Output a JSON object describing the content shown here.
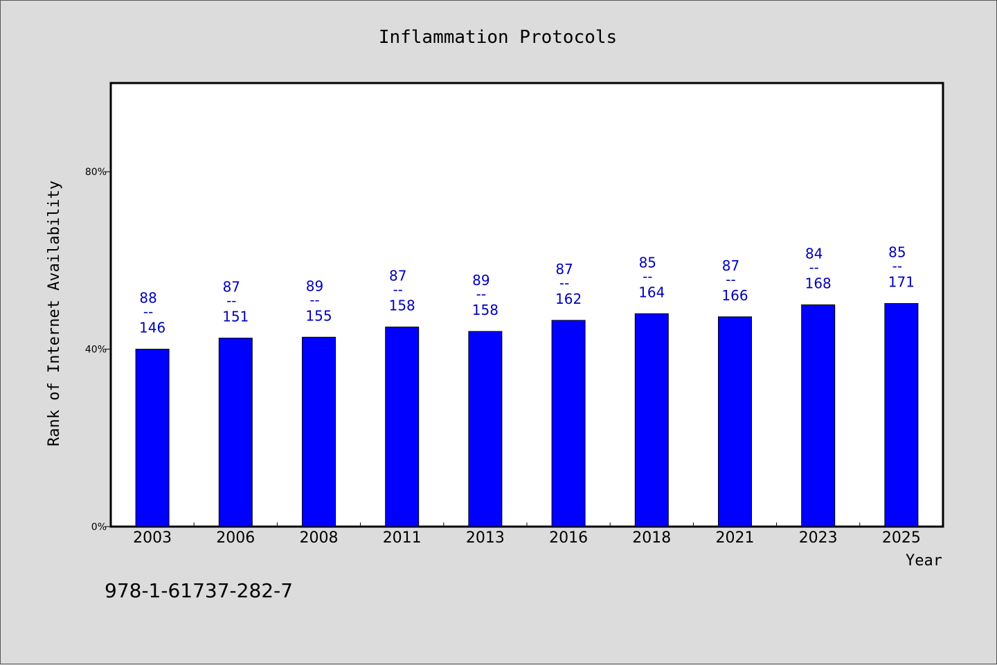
{
  "chart_data": {
    "type": "bar",
    "title": "Inflammation Protocols",
    "xlabel": "Year",
    "ylabel": "Rank of Internet Availability",
    "ylim": [
      0,
      100
    ],
    "yticks": [
      0,
      40,
      80
    ],
    "ytick_labels": [
      "0%",
      "40%",
      "80%"
    ],
    "categories": [
      "2003",
      "2006",
      "2008",
      "2011",
      "2013",
      "2016",
      "2018",
      "2021",
      "2023",
      "2025"
    ],
    "values": [
      40,
      42.5,
      42.7,
      45,
      44,
      46.5,
      48,
      47.3,
      50,
      50.3
    ],
    "label_top": [
      "88",
      "87",
      "89",
      "87",
      "89",
      "87",
      "85",
      "87",
      "84",
      "85"
    ],
    "label_sep": "--",
    "label_bottom": [
      "146",
      "151",
      "155",
      "158",
      "158",
      "162",
      "164",
      "166",
      "168",
      "171"
    ],
    "bar_color": "#0000ff",
    "label_color": "#0000bb",
    "grid": false,
    "legend": "none"
  },
  "footer": {
    "isbn": "978-1-61737-282-7"
  }
}
